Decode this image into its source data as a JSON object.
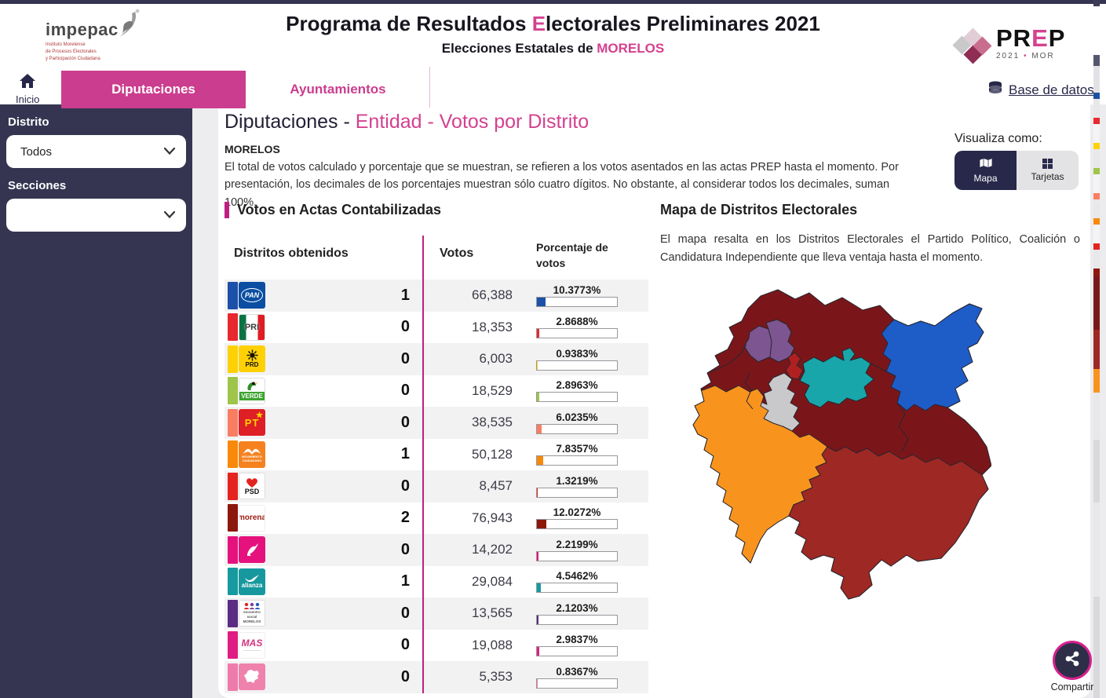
{
  "header": {
    "impepac": {
      "wordmark": "impepac",
      "tagline_lines": [
        "Instituto Morelense",
        "de Procesos Electorales",
        "y Participación Ciudadana"
      ]
    },
    "title_before": "Programa de Resultados ",
    "title_accent": "E",
    "title_after": "lectorales Preliminares 2021",
    "subtitle_before": "Elecciones Estatales de ",
    "subtitle_accent": "MORELOS",
    "prep": {
      "word_before": "PR",
      "word_accent": "E",
      "word_after": "P",
      "year": "2021",
      "state": "MOR"
    },
    "nav": {
      "home_label": "Inicio",
      "tabs": [
        {
          "label": "Diputaciones",
          "active": true
        },
        {
          "label": "Ayuntamientos",
          "active": false
        }
      ],
      "database_label": "Base de datos"
    }
  },
  "sidebar": {
    "district_label": "Distrito",
    "district_value": "Todos",
    "sections_label": "Secciones",
    "sections_value": ""
  },
  "main": {
    "breadcrumb_black": "Diputaciones - ",
    "breadcrumb_pink": "Entidad - Votos por Distrito",
    "state": "MORELOS",
    "description": "El total de votos calculado y porcentaje que se muestran, se refieren a los votos asentados en las actas PREP hasta el momento. Por presentación, los decimales de los porcentajes muestran sólo cuatro dígitos. No obstante, al considerar todos los decimales, suman 100%.",
    "view_as_label": "Visualiza como:",
    "view_options": [
      {
        "label": "Mapa",
        "active": true
      },
      {
        "label": "Tarjetas",
        "active": false
      }
    ],
    "share_label": "Compartir"
  },
  "table": {
    "section_title": "Votos en Actas Contabilizadas",
    "col_districts": "Distritos obtenidos",
    "col_votes": "Votos",
    "col_pct": "Porcentaje de votos",
    "rows": [
      {
        "id": "pan",
        "logo_text": "PAN",
        "color": "#1d50a8",
        "districts": "1",
        "votes": "66,388",
        "pct_label": "10.3773%",
        "pct": 10.3773
      },
      {
        "id": "pri",
        "logo_text": "PRI",
        "color": "#e8282f",
        "districts": "0",
        "votes": "18,353",
        "pct_label": "2.8688%",
        "pct": 2.8688
      },
      {
        "id": "prd",
        "logo_text": "PRD",
        "color": "#fed105",
        "districts": "0",
        "votes": "6,003",
        "pct_label": "0.9383%",
        "pct": 0.9383
      },
      {
        "id": "verde",
        "logo_text": "VERDE",
        "color": "#9ec54a",
        "districts": "0",
        "votes": "18,529",
        "pct_label": "2.8963%",
        "pct": 2.8963
      },
      {
        "id": "pt",
        "logo_text": "PT",
        "color": "#f97e61",
        "districts": "0",
        "votes": "38,535",
        "pct_label": "6.0235%",
        "pct": 6.0235
      },
      {
        "id": "mc",
        "logo_text": "MOVIMIENTO CIUDADANO",
        "color": "#f8890b",
        "districts": "1",
        "votes": "50,128",
        "pct_label": "7.8357%",
        "pct": 7.8357
      },
      {
        "id": "psd",
        "logo_text": "PSD",
        "color": "#e5231f",
        "districts": "0",
        "votes": "8,457",
        "pct_label": "1.3219%",
        "pct": 1.3219
      },
      {
        "id": "morena",
        "logo_text": "morena",
        "color": "#8c170d",
        "districts": "2",
        "votes": "76,943",
        "pct_label": "12.0272%",
        "pct": 12.0272
      },
      {
        "id": "colibri",
        "logo_text": "",
        "color": "#e5127d",
        "districts": "0",
        "votes": "14,202",
        "pct_label": "2.2199%",
        "pct": 2.2199
      },
      {
        "id": "alianza",
        "logo_text": "alianza",
        "color": "#169aa0",
        "districts": "1",
        "votes": "29,084",
        "pct_label": "4.5462%",
        "pct": 4.5462
      },
      {
        "id": "encuentro",
        "logo_text": "encuentro social MORELOS",
        "color": "#5b2c83",
        "districts": "0",
        "votes": "13,565",
        "pct_label": "2.1203%",
        "pct": 2.1203
      },
      {
        "id": "mas",
        "logo_text": "MAS",
        "color": "#df1e83",
        "districts": "0",
        "votes": "19,088",
        "pct_label": "2.9837%",
        "pct": 2.9837
      },
      {
        "id": "podemos",
        "logo_text": "",
        "color": "#ee7bab",
        "districts": "0",
        "votes": "5,353",
        "pct_label": "0.8367%",
        "pct": 0.8367
      }
    ]
  },
  "map": {
    "title": "Mapa de Distritos Electorales",
    "description": "El mapa resalta en los Distritos Electorales el Partido Político, Coalición o Candidatura Independiente que lleva ventaja hasta el momento.",
    "colors": {
      "base": "#7a161a",
      "blue": "#1e5cc8",
      "teal": "#18a6ab",
      "purple": "#7d5590",
      "crimson": "#b02020",
      "gray": "#c9c9cb",
      "orange": "#f8941e",
      "brick": "#9e2824"
    }
  }
}
